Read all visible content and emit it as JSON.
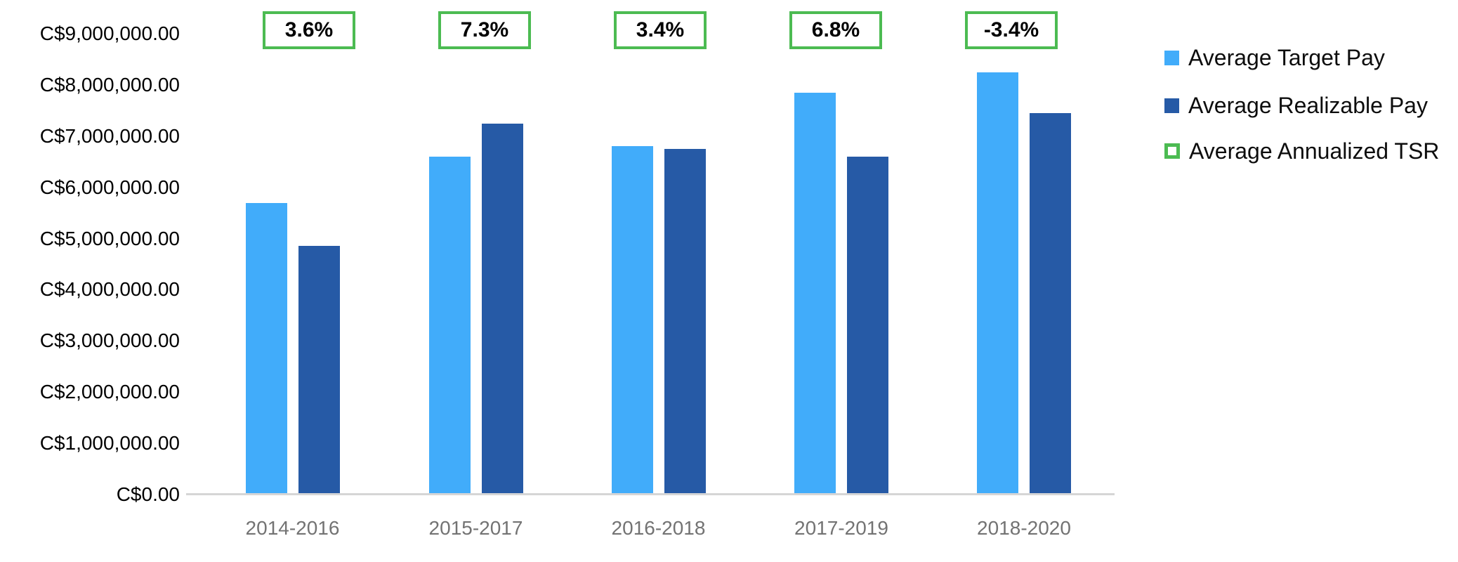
{
  "chart_data": {
    "type": "bar",
    "title": "",
    "categories": [
      "2014-2016",
      "2015-2017",
      "2016-2018",
      "2017-2019",
      "2018-2020"
    ],
    "series": [
      {
        "name": "Average Target Pay",
        "color": "#41ACFA",
        "values": [
          5700000,
          6600000,
          6800000,
          7850000,
          8250000
        ]
      },
      {
        "name": "Average Realizable Pay",
        "color": "#265AA6",
        "values": [
          4850000,
          7250000,
          6750000,
          6600000,
          7450000
        ]
      }
    ],
    "annotations": {
      "name": "Average Annualized TSR",
      "color": "#4CBB52",
      "values": [
        "3.6%",
        "7.3%",
        "3.4%",
        "6.8%",
        "-3.4%"
      ]
    },
    "y_axis": {
      "min": 0,
      "max": 9000000,
      "step": 1000000,
      "tick_labels": [
        "C$9,000,000.00",
        "C$8,000,000.00",
        "C$7,000,000.00",
        "C$6,000,000.00",
        "C$5,000,000.00",
        "C$4,000,000.00",
        "C$3,000,000.00",
        "C$2,000,000.00",
        "C$1,000,000.00",
        "C$0.00"
      ]
    },
    "grid": false,
    "legend_position": "right",
    "colors": {
      "target_blue": "#41ACFA",
      "realizable_blue": "#265AA6",
      "tsr_green": "#4CBB52",
      "axis_line_gray": "#D6D6D6",
      "x_label_gray": "#737373"
    }
  }
}
